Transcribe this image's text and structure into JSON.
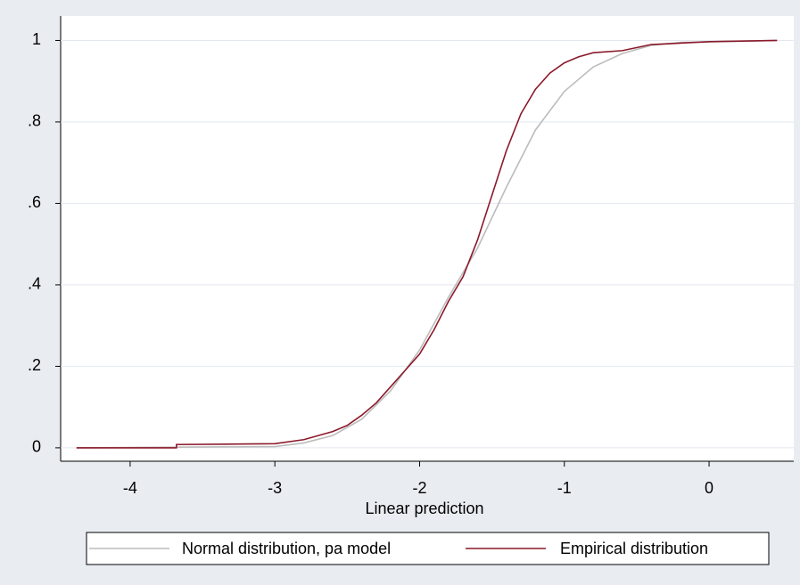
{
  "chart_data": {
    "type": "line",
    "xlabel": "Linear prediction",
    "xlim": [
      -4.48,
      0.585
    ],
    "ylim": [
      -0.033,
      1.06
    ],
    "xticks": [
      -4,
      -3,
      -2,
      -1,
      0
    ],
    "yticks": [
      {
        "value": 0,
        "label": "0"
      },
      {
        "value": 0.2,
        "label": ".2"
      },
      {
        "value": 0.4,
        "label": ".4"
      },
      {
        "value": 0.6,
        "label": ".6"
      },
      {
        "value": 0.8,
        "label": ".8"
      },
      {
        "value": 1,
        "label": "1"
      }
    ],
    "grid": true,
    "legend": "bottom",
    "series": [
      {
        "name": "Normal distribution, pa model",
        "color": "#bcbcbc",
        "x": [
          -4.37,
          -3.0,
          -2.8,
          -2.6,
          -2.4,
          -2.2,
          -2.0,
          -1.8,
          -1.6,
          -1.4,
          -1.2,
          -1.0,
          -0.8,
          -0.6,
          -0.4,
          -0.2,
          0.47
        ],
        "values": [
          0,
          0.003,
          0.012,
          0.03,
          0.07,
          0.14,
          0.24,
          0.37,
          0.49,
          0.64,
          0.78,
          0.875,
          0.935,
          0.968,
          0.988,
          0.995,
          1.0
        ]
      },
      {
        "name": "Empirical distribution",
        "color": "#8b1a2b",
        "x": [
          -4.37,
          -3.68,
          -3.68,
          -3.0,
          -2.8,
          -2.6,
          -2.5,
          -2.4,
          -2.3,
          -2.2,
          -2.1,
          -2.0,
          -1.9,
          -1.8,
          -1.7,
          -1.6,
          -1.5,
          -1.4,
          -1.3,
          -1.2,
          -1.1,
          -1.0,
          -0.9,
          -0.8,
          -0.6,
          -0.4,
          0.0,
          0.47
        ],
        "values": [
          0,
          0,
          0.008,
          0.01,
          0.02,
          0.04,
          0.055,
          0.08,
          0.11,
          0.15,
          0.19,
          0.23,
          0.29,
          0.36,
          0.42,
          0.51,
          0.62,
          0.73,
          0.82,
          0.88,
          0.92,
          0.945,
          0.96,
          0.97,
          0.975,
          0.99,
          0.997,
          1.0
        ]
      }
    ]
  }
}
